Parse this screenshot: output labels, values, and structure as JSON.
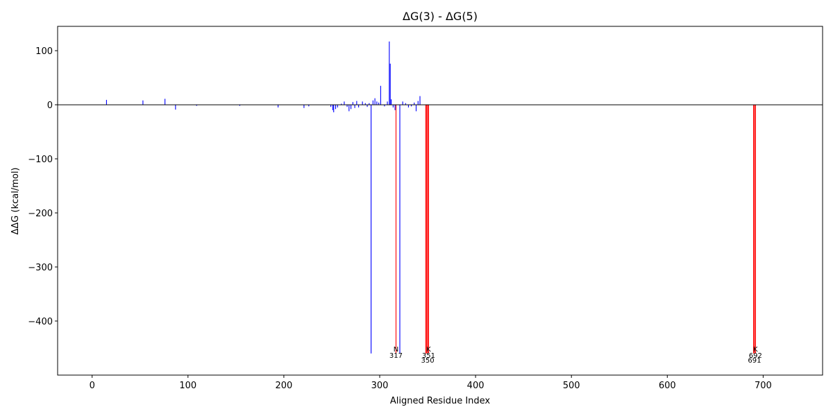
{
  "chart_data": {
    "type": "bar",
    "title": "ΔG(3) - ΔG(5)",
    "x_label": "Aligned Residue Index",
    "y_label": "ΔΔG (kcal/mol)",
    "xlim": [
      -36,
      762
    ],
    "ylim": [
      -500,
      145
    ],
    "xticks": [
      0,
      100,
      200,
      300,
      400,
      500,
      600,
      700
    ],
    "yticks": [
      {
        "value": -400,
        "label": "−400"
      },
      {
        "value": -300,
        "label": "−300"
      },
      {
        "value": -200,
        "label": "−200"
      },
      {
        "value": -100,
        "label": "−100"
      },
      0,
      100
    ],
    "zero_line": true,
    "bar_width": 0.8,
    "series": [
      {
        "color": "#0000ff",
        "x": [
          15,
          53,
          76,
          87,
          109,
          154,
          194,
          221,
          226,
          249,
          251,
          252,
          254,
          256,
          260,
          263,
          266,
          268,
          270,
          272,
          274,
          276,
          278,
          282,
          285,
          287,
          289,
          291,
          293,
          295,
          297,
          299,
          301,
          305,
          308,
          310,
          311,
          312,
          314,
          316,
          321,
          324,
          327,
          330,
          333,
          336,
          338,
          340,
          342
        ],
        "values": [
          9,
          8,
          11,
          -9,
          -2,
          -2,
          -5,
          -6,
          -3,
          -4,
          -10,
          -14,
          -8,
          -5,
          2,
          6,
          -4,
          -12,
          -8,
          5,
          -6,
          7,
          -5,
          6,
          3,
          -4,
          3,
          -460,
          8,
          12,
          6,
          4,
          35,
          -3,
          6,
          117,
          76,
          10,
          -5,
          -10,
          -460,
          6,
          3,
          -5,
          -3,
          4,
          -12,
          7,
          16
        ]
      },
      {
        "color": "#ff0000",
        "x": [
          317,
          348,
          349,
          350,
          351,
          690,
          691,
          692
        ],
        "values": [
          -460,
          -460,
          -460,
          -460,
          -460,
          -460,
          -460,
          -460
        ]
      }
    ],
    "annotations": [
      {
        "residue": "N",
        "index": 317
      },
      {
        "residue": "K",
        "index": 351
      },
      {
        "index": 350
      },
      {
        "residue": "K",
        "index": 692
      },
      {
        "index": 691
      }
    ]
  }
}
